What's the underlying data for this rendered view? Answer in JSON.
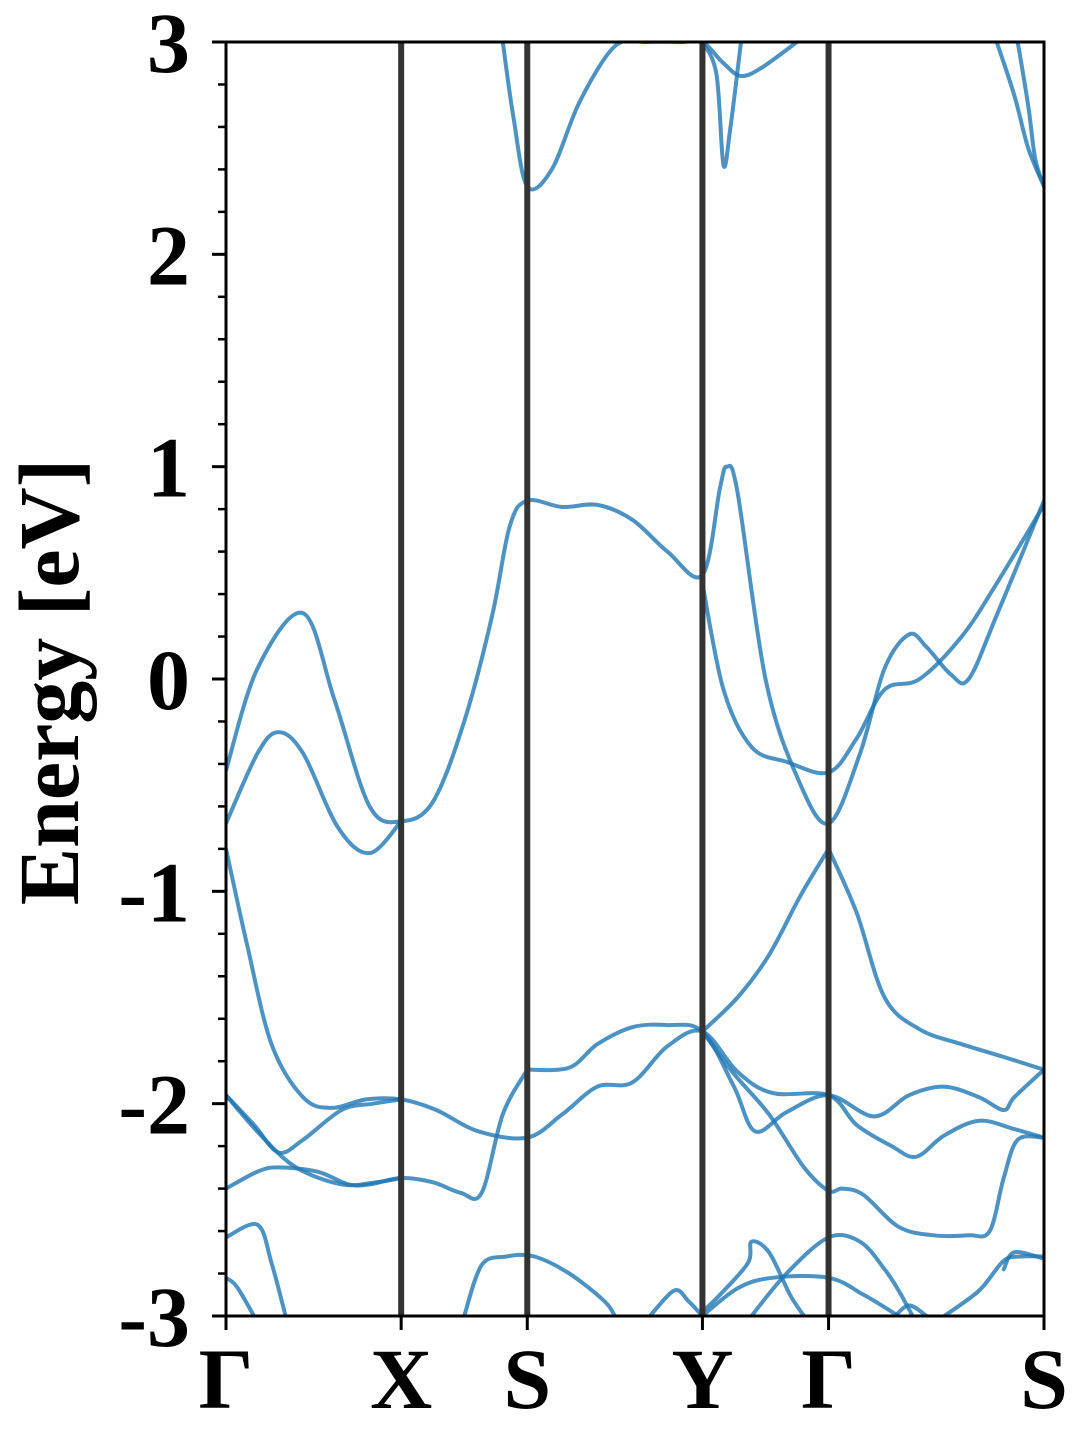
{
  "chart_data": {
    "type": "line",
    "ylabel": "Energy [eV]",
    "ylim": [
      -3,
      3
    ],
    "y_ticks": [
      {
        "value": 3,
        "label": "3"
      },
      {
        "value": 2,
        "label": "2"
      },
      {
        "value": 1,
        "label": "1"
      },
      {
        "value": 0,
        "label": "0"
      },
      {
        "value": -1,
        "label": "-1"
      },
      {
        "value": -2,
        "label": "-2"
      },
      {
        "value": -3,
        "label": "-3"
      }
    ],
    "y_minor_step": 0.2,
    "xlim": [
      0,
      4.67
    ],
    "k_points": [
      {
        "label": "Γ",
        "x": 0
      },
      {
        "label": "X",
        "x": 1.0
      },
      {
        "label": "S",
        "x": 1.72
      },
      {
        "label": "Y",
        "x": 2.72
      },
      {
        "label": "Γ",
        "x": 3.44
      },
      {
        "label": "S",
        "x": 4.67
      }
    ],
    "band_color": "#1f77b4",
    "line_color": "#333333",
    "bands": [
      {
        "points": [
          [
            0,
            -0.43
          ],
          [
            0.18,
            0.05
          ],
          [
            0.44,
            0.31
          ],
          [
            0.62,
            -0.1
          ],
          [
            0.82,
            -0.6
          ],
          [
            1.0,
            -0.67
          ],
          [
            1.18,
            -0.58
          ],
          [
            1.36,
            -0.2
          ],
          [
            1.52,
            0.3
          ],
          [
            1.62,
            0.72
          ],
          [
            1.72,
            0.84
          ],
          [
            1.92,
            0.81
          ],
          [
            2.12,
            0.82
          ],
          [
            2.32,
            0.75
          ],
          [
            2.52,
            0.6
          ],
          [
            2.72,
            0.49
          ],
          [
            2.82,
            0.9
          ],
          [
            2.86,
            1.0
          ],
          [
            2.92,
            0.88
          ],
          [
            3.08,
            0.0
          ],
          [
            3.26,
            -0.46
          ],
          [
            3.44,
            -0.68
          ],
          [
            3.62,
            -0.35
          ],
          [
            3.76,
            0.05
          ],
          [
            3.9,
            0.21
          ],
          [
            4.0,
            0.15
          ],
          [
            4.14,
            0.02
          ],
          [
            4.24,
            0.0
          ],
          [
            4.4,
            0.3
          ],
          [
            4.67,
            0.84
          ]
        ]
      },
      {
        "points": [
          [
            0,
            -0.68
          ],
          [
            0.18,
            -0.35
          ],
          [
            0.3,
            -0.25
          ],
          [
            0.44,
            -0.35
          ],
          [
            0.64,
            -0.7
          ],
          [
            0.82,
            -0.82
          ],
          [
            1.0,
            -0.67
          ]
        ]
      },
      {
        "points": [
          [
            2.72,
            0.45
          ],
          [
            2.84,
            -0.05
          ],
          [
            3.0,
            -0.32
          ],
          [
            3.2,
            -0.39
          ],
          [
            3.44,
            -0.44
          ],
          [
            3.6,
            -0.28
          ],
          [
            3.76,
            -0.05
          ],
          [
            3.96,
            0.0
          ],
          [
            4.2,
            0.2
          ],
          [
            4.4,
            0.45
          ],
          [
            4.67,
            0.82
          ]
        ]
      },
      {
        "points": [
          [
            0,
            -0.8
          ],
          [
            0.12,
            -1.25
          ],
          [
            0.26,
            -1.72
          ],
          [
            0.44,
            -1.97
          ],
          [
            0.6,
            -2.02
          ],
          [
            0.8,
            -1.98
          ],
          [
            1.0,
            -1.98
          ],
          [
            1.2,
            -2.03
          ],
          [
            1.44,
            -2.13
          ],
          [
            1.72,
            -2.16
          ],
          [
            1.92,
            -2.05
          ],
          [
            2.12,
            -1.92
          ],
          [
            2.32,
            -1.9
          ],
          [
            2.52,
            -1.73
          ],
          [
            2.72,
            -1.66
          ],
          [
            2.92,
            -1.85
          ],
          [
            3.12,
            -1.95
          ],
          [
            3.44,
            -1.96
          ],
          [
            3.6,
            -2.1
          ],
          [
            3.8,
            -2.2
          ],
          [
            3.94,
            -2.25
          ],
          [
            4.1,
            -2.15
          ],
          [
            4.3,
            -2.08
          ],
          [
            4.5,
            -2.12
          ],
          [
            4.67,
            -2.16
          ]
        ]
      },
      {
        "points": [
          [
            1.72,
            -1.84
          ],
          [
            1.96,
            -1.83
          ],
          [
            2.12,
            -1.72
          ],
          [
            2.32,
            -1.64
          ],
          [
            2.52,
            -1.63
          ],
          [
            2.72,
            -1.66
          ],
          [
            2.9,
            -1.92
          ],
          [
            3.02,
            -2.13
          ],
          [
            3.2,
            -2.04
          ],
          [
            3.44,
            -1.96
          ],
          [
            3.7,
            -2.06
          ],
          [
            3.9,
            -1.96
          ],
          [
            4.1,
            -1.92
          ],
          [
            4.3,
            -1.97
          ],
          [
            4.44,
            -2.03
          ],
          [
            4.5,
            -1.97
          ],
          [
            4.67,
            -1.84
          ]
        ]
      },
      {
        "points": [
          [
            1.72,
            -1.84
          ],
          [
            1.58,
            -2.05
          ],
          [
            1.46,
            -2.42
          ],
          [
            1.34,
            -2.42
          ],
          [
            1.18,
            -2.37
          ],
          [
            1.0,
            -2.35
          ],
          [
            0.82,
            -2.38
          ],
          [
            0.7,
            -2.38
          ],
          [
            0.52,
            -2.32
          ],
          [
            0.3,
            -2.3
          ],
          [
            0.18,
            -2.32
          ],
          [
            0,
            -2.4
          ]
        ]
      },
      {
        "points": [
          [
            0,
            -1.96
          ],
          [
            0.16,
            -2.1
          ],
          [
            0.3,
            -2.23
          ],
          [
            0.44,
            -2.17
          ],
          [
            0.66,
            -2.03
          ],
          [
            0.84,
            -2.0
          ],
          [
            1.0,
            -1.98
          ]
        ]
      },
      {
        "points": [
          [
            0,
            -1.96
          ],
          [
            0.2,
            -2.15
          ],
          [
            0.4,
            -2.3
          ],
          [
            0.66,
            -2.38
          ],
          [
            0.86,
            -2.37
          ],
          [
            1.0,
            -2.35
          ]
        ]
      },
      {
        "points": [
          [
            2.72,
            -1.66
          ],
          [
            2.9,
            -1.86
          ],
          [
            3.1,
            -2.05
          ],
          [
            3.3,
            -2.3
          ],
          [
            3.44,
            -2.41
          ],
          [
            3.52,
            -2.4
          ],
          [
            3.64,
            -2.43
          ],
          [
            3.84,
            -2.58
          ],
          [
            4.04,
            -2.62
          ],
          [
            4.24,
            -2.62
          ],
          [
            4.36,
            -2.6
          ],
          [
            4.44,
            -2.35
          ],
          [
            4.52,
            -2.17
          ],
          [
            4.67,
            -2.16
          ]
        ]
      },
      {
        "points": [
          [
            3.44,
            -0.8
          ],
          [
            3.6,
            -1.1
          ],
          [
            3.76,
            -1.5
          ],
          [
            3.96,
            -1.65
          ],
          [
            4.2,
            -1.72
          ],
          [
            4.44,
            -1.78
          ],
          [
            4.67,
            -1.84
          ]
        ]
      },
      {
        "points": [
          [
            3.44,
            -0.8
          ],
          [
            3.28,
            -1.02
          ],
          [
            3.1,
            -1.3
          ],
          [
            2.92,
            -1.5
          ],
          [
            2.72,
            -1.66
          ]
        ]
      },
      {
        "points": [
          [
            0,
            -2.63
          ],
          [
            0.18,
            -2.57
          ],
          [
            0.26,
            -2.75
          ],
          [
            0.34,
            -3.0
          ]
        ]
      },
      {
        "points": [
          [
            0,
            -2.82
          ],
          [
            0.06,
            -2.86
          ],
          [
            0.16,
            -3.0
          ]
        ]
      },
      {
        "points": [
          [
            1.36,
            -3.0
          ],
          [
            1.46,
            -2.76
          ],
          [
            1.6,
            -2.72
          ],
          [
            1.76,
            -2.72
          ],
          [
            1.96,
            -2.8
          ],
          [
            2.16,
            -2.93
          ],
          [
            2.22,
            -3.0
          ]
        ]
      },
      {
        "points": [
          [
            2.42,
            -3.0
          ],
          [
            2.56,
            -2.88
          ],
          [
            2.64,
            -2.93
          ],
          [
            2.72,
            -3.0
          ]
        ]
      },
      {
        "points": [
          [
            2.72,
            -3.0
          ],
          [
            2.92,
            -2.87
          ],
          [
            3.12,
            -2.82
          ],
          [
            3.44,
            -2.82
          ],
          [
            3.64,
            -2.9
          ],
          [
            3.84,
            -3.0
          ]
        ]
      },
      {
        "points": [
          [
            2.72,
            -2.98
          ],
          [
            2.82,
            -2.9
          ],
          [
            2.98,
            -2.75
          ],
          [
            3.0,
            -2.65
          ],
          [
            3.1,
            -2.7
          ],
          [
            3.22,
            -2.9
          ],
          [
            3.3,
            -3.0
          ]
        ]
      },
      {
        "points": [
          [
            3.0,
            -3.0
          ],
          [
            3.2,
            -2.8
          ],
          [
            3.44,
            -2.63
          ],
          [
            3.62,
            -2.65
          ],
          [
            3.76,
            -2.78
          ],
          [
            3.84,
            -2.88
          ],
          [
            3.92,
            -3.0
          ]
        ]
      },
      {
        "points": [
          [
            3.82,
            -3.0
          ],
          [
            3.9,
            -2.95
          ],
          [
            4.0,
            -3.0
          ]
        ]
      },
      {
        "points": [
          [
            4.1,
            -3.0
          ],
          [
            4.3,
            -2.88
          ],
          [
            4.44,
            -2.74
          ],
          [
            4.54,
            -2.72
          ],
          [
            4.67,
            -2.72
          ]
        ]
      },
      {
        "points": [
          [
            4.44,
            -2.78
          ],
          [
            4.5,
            -2.7
          ],
          [
            4.67,
            -2.73
          ]
        ]
      },
      {
        "points": [
          [
            1.58,
            3.0
          ],
          [
            1.64,
            2.65
          ],
          [
            1.72,
            2.32
          ],
          [
            1.86,
            2.4
          ],
          [
            2.02,
            2.72
          ],
          [
            2.22,
            2.98
          ],
          [
            2.4,
            3.0
          ],
          [
            2.6,
            3.0
          ],
          [
            2.72,
            3.0
          ],
          [
            2.84,
            2.9
          ],
          [
            2.94,
            2.84
          ],
          [
            3.06,
            2.88
          ],
          [
            3.26,
            3.0
          ]
        ]
      },
      {
        "points": [
          [
            2.72,
            3.0
          ],
          [
            2.8,
            2.85
          ],
          [
            2.84,
            2.42
          ],
          [
            2.88,
            2.6
          ],
          [
            2.94,
            3.0
          ]
        ]
      },
      {
        "points": [
          [
            4.4,
            3.0
          ],
          [
            4.5,
            2.75
          ],
          [
            4.58,
            2.5
          ],
          [
            4.67,
            2.32
          ]
        ]
      },
      {
        "points": [
          [
            4.52,
            3.0
          ],
          [
            4.58,
            2.7
          ],
          [
            4.62,
            2.45
          ],
          [
            4.67,
            2.32
          ]
        ]
      }
    ]
  }
}
